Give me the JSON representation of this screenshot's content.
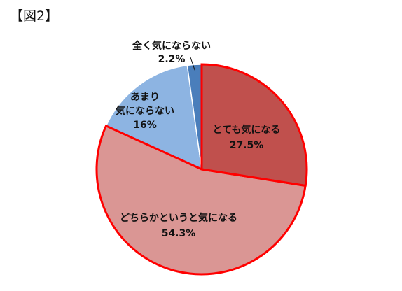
{
  "title": "【図2】",
  "chart_data": {
    "type": "pie",
    "title": "【図2】",
    "slices": [
      {
        "label_lines": [
          "とても気になる"
        ],
        "value": 27.5,
        "display": "27.5%",
        "color": "#c0504d",
        "highlighted": true
      },
      {
        "label_lines": [
          "どちらかというと気になる"
        ],
        "value": 54.3,
        "display": "54.3%",
        "color": "#da9694",
        "highlighted": true
      },
      {
        "label_lines": [
          "あまり",
          "気にならない"
        ],
        "value": 16.0,
        "display": "16%",
        "color": "#8db4e2",
        "highlighted": false
      },
      {
        "label_lines": [
          "全く気にならない"
        ],
        "value": 2.2,
        "display": "2.2%",
        "color": "#4a7ebb",
        "highlighted": false
      }
    ],
    "start_angle": "12 o'clock",
    "direction": "clockwise",
    "highlight_color": "#ff0000",
    "legend": "none"
  }
}
